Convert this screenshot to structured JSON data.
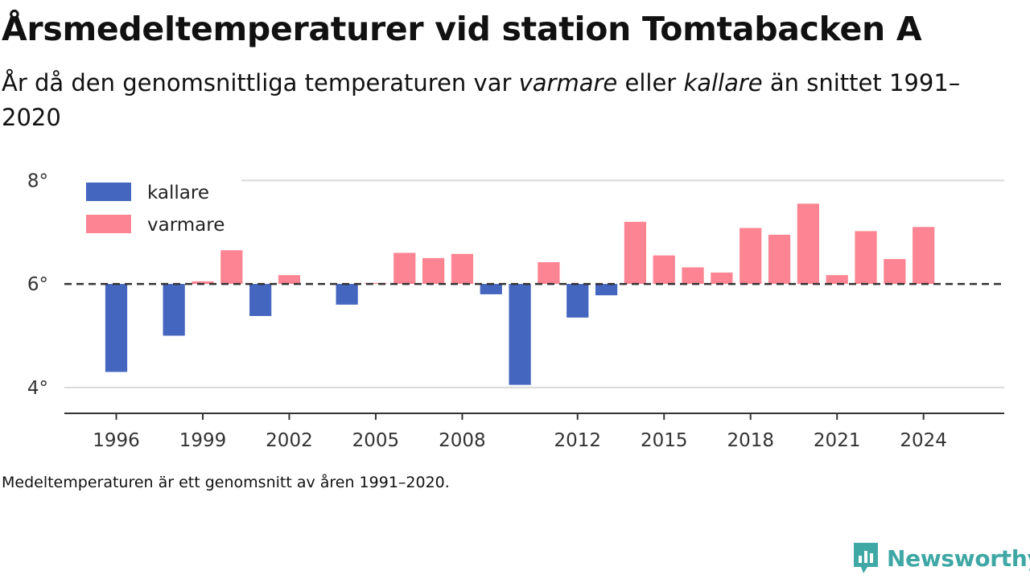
{
  "title": "Årsmedeltemperaturer vid station Tomtabacken A",
  "subtitle": {
    "part1": "År då den genomsnittliga temperaturen var ",
    "warm_word": "varmare",
    "part2": " eller ",
    "cold_word": "kallare",
    "part3": " än snittet 1991–2020"
  },
  "footnote": "Medeltemperaturen är ett genomsnitt av åren 1991–2020.",
  "brand": "Newsworthy",
  "colors": {
    "kallare": "#4466bf",
    "varmare": "#fd8593",
    "baseline": "#333333",
    "grid": "#d9d9d9",
    "axis": "#333333",
    "brand": "#3fa8a5"
  },
  "chart_data": {
    "type": "bar",
    "x": [
      1996,
      1997,
      1998,
      1999,
      2000,
      2001,
      2002,
      2003,
      2004,
      2005,
      2006,
      2007,
      2008,
      2009,
      2010,
      2011,
      2012,
      2013,
      2014,
      2015,
      2016,
      2017,
      2018,
      2019,
      2020,
      2021,
      2022,
      2023,
      2024
    ],
    "values": [
      4.3,
      null,
      5.0,
      6.05,
      6.65,
      5.38,
      6.17,
      null,
      5.6,
      6.02,
      6.6,
      6.5,
      6.58,
      5.8,
      4.05,
      6.42,
      5.35,
      5.78,
      7.2,
      6.55,
      6.32,
      6.22,
      7.08,
      6.95,
      7.55,
      6.17,
      7.02,
      6.48,
      7.1
    ],
    "baseline": 6.0,
    "series": [
      {
        "name": "kallare"
      },
      {
        "name": "varmare"
      }
    ],
    "xticks": [
      1996,
      1999,
      2002,
      2005,
      2008,
      2012,
      2015,
      2018,
      2021,
      2024
    ],
    "yticks": [
      4,
      6,
      8
    ],
    "ytick_labels": [
      "4°",
      "6°",
      "8°"
    ],
    "ylim": [
      3.5,
      8.3
    ],
    "xlim": [
      1994.2,
      2026.8
    ],
    "grid": true,
    "legend_position": "top-left"
  }
}
